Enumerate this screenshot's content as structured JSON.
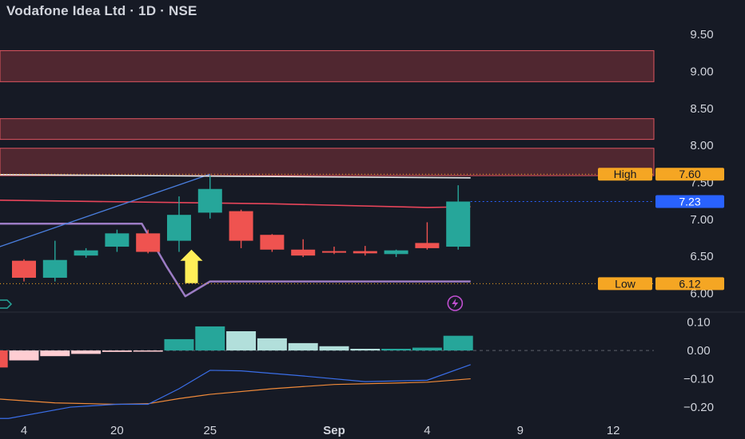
{
  "header": {
    "title": "Vodafone Idea Ltd · 1D · NSE"
  },
  "colors": {
    "background": "#161a25",
    "up": "#26a69a",
    "down": "#ef5350",
    "zone_fill": "#5a2a32",
    "zone_border": "#e05560",
    "ma_red": "#e8455a",
    "channel": "#9c7cc4",
    "trend": "#4a7fe0",
    "white_line": "#e9e9ea",
    "high_low": "#f5a623",
    "last_price": "#2962ff",
    "arrow": "#ffee58",
    "macd_line": "#3a6ee8",
    "signal_line": "#f08a3a",
    "axis_text": "#d1d4dc",
    "lightning": "#c04fd0"
  },
  "price_axis": {
    "labels": [
      "9.50",
      "9.00",
      "8.50",
      "8.00",
      "7.50",
      "7.00",
      "6.50",
      "6.00"
    ]
  },
  "indicator_axis": {
    "labels": [
      "0.10",
      "0.00",
      "−0.10",
      "−0.20"
    ]
  },
  "time_axis": {
    "labels": [
      "4",
      "20",
      "25",
      "Sep",
      "4",
      "9",
      "12"
    ]
  },
  "price_badges": {
    "high": {
      "label": "High",
      "value": "7.60"
    },
    "low": {
      "label": "Low",
      "value": "6.12"
    },
    "last": {
      "value": "7.23"
    }
  },
  "chart_data": {
    "type": "candlestick",
    "ylim": [
      5.93,
      9.76
    ],
    "indicator_ylim": [
      -0.245,
      0.13
    ],
    "x_ticks": [
      {
        "label": "4",
        "x": 0.0
      },
      {
        "label": "20",
        "x": 3.0
      },
      {
        "label": "25",
        "x": 6.0
      },
      {
        "label": "Sep",
        "x": 10.0
      },
      {
        "label": "4",
        "x": 13.0
      },
      {
        "label": "9",
        "x": 16.0
      },
      {
        "label": "12",
        "x": 19.0
      }
    ],
    "candles": [
      {
        "x": 0,
        "o": 6.43,
        "h": 6.45,
        "l": 6.15,
        "c": 6.2
      },
      {
        "x": 1,
        "o": 6.2,
        "h": 6.7,
        "l": 6.15,
        "c": 6.44
      },
      {
        "x": 2,
        "o": 6.5,
        "h": 6.6,
        "l": 6.47,
        "c": 6.57
      },
      {
        "x": 3,
        "o": 6.62,
        "h": 6.85,
        "l": 6.55,
        "c": 6.8
      },
      {
        "x": 4,
        "o": 6.8,
        "h": 6.85,
        "l": 6.53,
        "c": 6.55
      },
      {
        "x": 5,
        "o": 6.7,
        "h": 7.3,
        "l": 6.55,
        "c": 7.05
      },
      {
        "x": 6,
        "o": 7.08,
        "h": 7.58,
        "l": 7.0,
        "c": 7.4
      },
      {
        "x": 7,
        "o": 7.1,
        "h": 7.12,
        "l": 6.6,
        "c": 6.7
      },
      {
        "x": 8,
        "o": 6.78,
        "h": 6.79,
        "l": 6.55,
        "c": 6.58
      },
      {
        "x": 9,
        "o": 6.58,
        "h": 6.72,
        "l": 6.48,
        "c": 6.5
      },
      {
        "x": 10,
        "o": 6.56,
        "h": 6.62,
        "l": 6.52,
        "c": 6.55
      },
      {
        "x": 11,
        "o": 6.56,
        "h": 6.63,
        "l": 6.5,
        "c": 6.53
      },
      {
        "x": 12,
        "o": 6.52,
        "h": 6.58,
        "l": 6.48,
        "c": 6.57
      },
      {
        "x": 13,
        "o": 6.67,
        "h": 6.95,
        "l": 6.58,
        "c": 6.6
      },
      {
        "x": 14,
        "o": 6.62,
        "h": 7.45,
        "l": 6.58,
        "c": 7.23
      }
    ],
    "resistance_zones": [
      [
        8.85,
        9.27
      ],
      [
        8.07,
        8.35
      ],
      [
        7.58,
        7.95
      ]
    ],
    "trend_line": [
      [
        -3,
        6.3
      ],
      [
        6,
        7.6
      ]
    ],
    "white_line": [
      [
        -3,
        7.6
      ],
      [
        14.4,
        7.55
      ]
    ],
    "ma_red": [
      [
        -3,
        7.26
      ],
      [
        8,
        7.2
      ],
      [
        13,
        7.15
      ],
      [
        14.4,
        7.16
      ]
    ],
    "channel": [
      [
        -3,
        6.93
      ],
      [
        3.8,
        6.93
      ],
      [
        4.6,
        6.35
      ],
      [
        5.2,
        5.95
      ],
      [
        6,
        6.15
      ],
      [
        14.4,
        6.15
      ]
    ],
    "high": 7.6,
    "low": 6.12,
    "last": 7.23,
    "arrow_x": 5.4,
    "histogram": [
      {
        "x": -1,
        "v": -0.06
      },
      {
        "x": 0,
        "v": -0.035
      },
      {
        "x": 1,
        "v": -0.02
      },
      {
        "x": 2,
        "v": -0.012
      },
      {
        "x": 3,
        "v": -0.005
      },
      {
        "x": 4,
        "v": -0.002
      },
      {
        "x": 5,
        "v": 0.04
      },
      {
        "x": 6,
        "v": 0.085
      },
      {
        "x": 7,
        "v": 0.068
      },
      {
        "x": 8,
        "v": 0.043
      },
      {
        "x": 9,
        "v": 0.026
      },
      {
        "x": 10,
        "v": 0.015
      },
      {
        "x": 11,
        "v": 0.006
      },
      {
        "x": 12,
        "v": 0.006
      },
      {
        "x": 13,
        "v": 0.01
      },
      {
        "x": 14,
        "v": 0.052
      }
    ],
    "macd_line": [
      [
        -3,
        -0.24
      ],
      [
        -0.5,
        -0.24
      ],
      [
        1.5,
        -0.2
      ],
      [
        3,
        -0.19
      ],
      [
        4,
        -0.19
      ],
      [
        5,
        -0.135
      ],
      [
        6,
        -0.07
      ],
      [
        7,
        -0.072
      ],
      [
        9,
        -0.09
      ],
      [
        11,
        -0.11
      ],
      [
        13,
        -0.105
      ],
      [
        14.4,
        -0.05
      ]
    ],
    "signal_line": [
      [
        -3,
        -0.155
      ],
      [
        1,
        -0.185
      ],
      [
        3,
        -0.19
      ],
      [
        4,
        -0.188
      ],
      [
        5,
        -0.17
      ],
      [
        6,
        -0.155
      ],
      [
        8,
        -0.135
      ],
      [
        10,
        -0.12
      ],
      [
        12,
        -0.115
      ],
      [
        13,
        -0.112
      ],
      [
        14.4,
        -0.1
      ]
    ]
  }
}
